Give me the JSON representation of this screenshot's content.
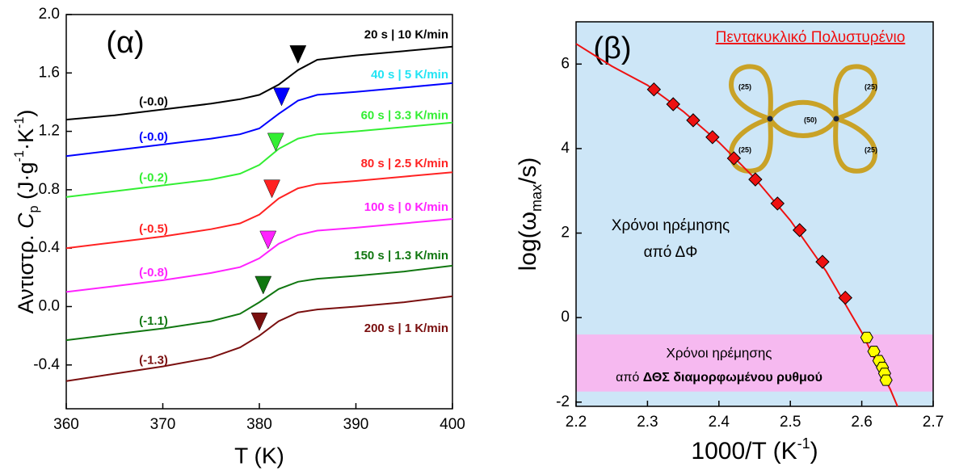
{
  "chart_data": [
    {
      "type": "line",
      "panel_label": "(α)",
      "xlabel": "T (K)",
      "ylabel_parts": [
        "Αντιστρ. ",
        "C",
        "p",
        " (J·g",
        "-1",
        "·K",
        "-1",
        ")"
      ],
      "xlim": [
        360,
        400
      ],
      "xticks": [
        360,
        370,
        380,
        390,
        400
      ],
      "ylim": [
        -0.7,
        2.0
      ],
      "yticks": [
        {
          "value": 2,
          "label": "2.0"
        },
        1.6,
        1.2,
        0.8,
        0.4,
        {
          "value": 0,
          "label": "0.0"
        },
        -0.4
      ],
      "x": [
        360,
        365,
        370,
        375,
        378,
        380,
        382,
        384,
        386,
        390,
        395,
        400
      ],
      "series": [
        {
          "name": "20 s | 10 K/min",
          "color": "#000000",
          "annotation": "(-0.0)",
          "tg_x": 384.0,
          "tg_y": 1.71,
          "values": [
            1.28,
            1.31,
            1.35,
            1.39,
            1.42,
            1.45,
            1.52,
            1.62,
            1.69,
            1.72,
            1.75,
            1.78
          ]
        },
        {
          "name": "40 s | 5 K/min",
          "color": "#0000ff",
          "label_color": "#22e4f4",
          "annotation": "(-0.0)",
          "tg_x": 382.3,
          "tg_y": 1.42,
          "values": [
            1.03,
            1.07,
            1.11,
            1.15,
            1.18,
            1.22,
            1.32,
            1.41,
            1.45,
            1.47,
            1.5,
            1.53
          ]
        },
        {
          "name": "60 s | 3.3 K/min",
          "color": "#33ee33",
          "annotation": "(-0.2)",
          "tg_x": 381.7,
          "tg_y": 1.11,
          "values": [
            0.75,
            0.79,
            0.83,
            0.87,
            0.91,
            0.97,
            1.08,
            1.15,
            1.18,
            1.2,
            1.23,
            1.26
          ]
        },
        {
          "name": "80 s | 2.5 K/min",
          "color": "#ff2222",
          "annotation": "(-0.5)",
          "tg_x": 381.3,
          "tg_y": 0.79,
          "values": [
            0.4,
            0.44,
            0.48,
            0.53,
            0.57,
            0.63,
            0.74,
            0.81,
            0.84,
            0.86,
            0.89,
            0.92
          ]
        },
        {
          "name": "100 s | 0 K/min",
          "color": "#ff22ff",
          "annotation": "(-0.8)",
          "tg_x": 380.9,
          "tg_y": 0.44,
          "values": [
            0.1,
            0.14,
            0.18,
            0.23,
            0.27,
            0.33,
            0.43,
            0.49,
            0.52,
            0.54,
            0.57,
            0.6
          ]
        },
        {
          "name": "150 s | 1.3 K/min",
          "color": "#117711",
          "annotation": "(-1.1)",
          "tg_x": 380.4,
          "tg_y": 0.13,
          "values": [
            -0.23,
            -0.19,
            -0.15,
            -0.1,
            -0.05,
            0.03,
            0.12,
            0.17,
            0.19,
            0.21,
            0.24,
            0.28
          ]
        },
        {
          "name": "200 s | 1 K/min",
          "color": "#7a0f0f",
          "annotation": "(-1.3)",
          "tg_x": 380.0,
          "tg_y": -0.12,
          "values": [
            -0.51,
            -0.46,
            -0.41,
            -0.35,
            -0.28,
            -0.2,
            -0.1,
            -0.04,
            -0.02,
            0.0,
            0.03,
            0.07
          ]
        }
      ]
    },
    {
      "type": "scatter",
      "panel_label": "(β)",
      "title": "Πεντακυκλικό Πολυστυρένιο",
      "figure_labels": [
        "(25)",
        "(25)",
        "(50)",
        "(25)",
        "(25)"
      ],
      "xlabel_parts": [
        "1000/T (K",
        "-1",
        ")"
      ],
      "ylabel_parts": [
        "log(",
        "ω",
        "max",
        "/s)"
      ],
      "xlim": [
        2.2,
        2.7
      ],
      "xticks": [
        2.2,
        2.3,
        2.4,
        2.5,
        2.6,
        2.7
      ],
      "ylim": [
        -2.1,
        7
      ],
      "yticks": [
        -2,
        0,
        2,
        4,
        6
      ],
      "background": "#cde6f7",
      "band": {
        "y_from": -0.4,
        "y_to": -1.75,
        "color": "#f6b9f0"
      },
      "annotation_upper": [
        "Χρόνοι ηρέμησης",
        "από ΔΦ"
      ],
      "annotation_lower": {
        "line1": "Χρόνοι ηρέμησης",
        "line2_prefix": "από ",
        "line2_bold": "ΔΘΣ διαμορφωμένου ρυθμού"
      },
      "fit": {
        "color": "#ee1111",
        "x": [
          2.2,
          2.25,
          2.3,
          2.35,
          2.4,
          2.45,
          2.5,
          2.55,
          2.6,
          2.62,
          2.64,
          2.65
        ],
        "values": [
          6.48,
          5.95,
          5.5,
          4.88,
          4.15,
          3.3,
          2.3,
          1.1,
          -0.35,
          -1.05,
          -1.7,
          -2.1
        ]
      },
      "series": [
        {
          "marker": "diamond",
          "color": "#ee1111",
          "x": [
            2.309,
            2.336,
            2.364,
            2.391,
            2.421,
            2.451,
            2.482,
            2.513,
            2.545,
            2.577
          ],
          "values": [
            5.4,
            5.05,
            4.67,
            4.27,
            3.77,
            3.27,
            2.7,
            2.07,
            1.32,
            0.47
          ]
        },
        {
          "marker": "hexagon",
          "color": "#ffff00",
          "x": [
            2.607,
            2.617,
            2.624,
            2.629,
            2.632,
            2.634
          ],
          "values": [
            -0.47,
            -0.8,
            -1.02,
            -1.18,
            -1.32,
            -1.48
          ]
        }
      ]
    }
  ]
}
